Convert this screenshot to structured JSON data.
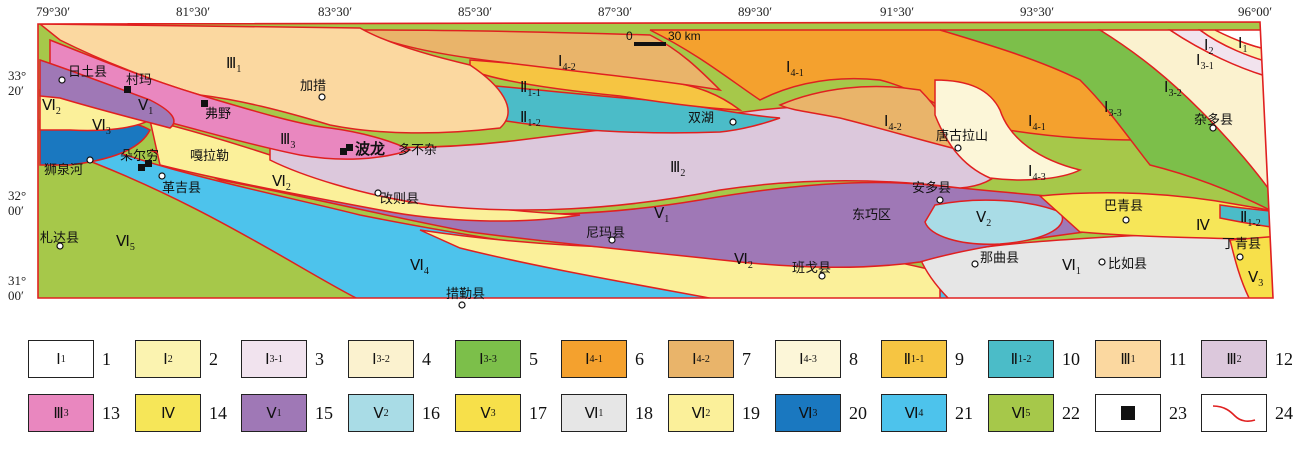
{
  "coords": {
    "top": [
      "79°30′",
      "81°30′",
      "83°30′",
      "85°30′",
      "87°30′",
      "89°30′",
      "91°30′",
      "93°30′",
      "96°00′"
    ],
    "left": [
      {
        "deg": "33°",
        "min": "20′"
      },
      {
        "deg": "32°",
        "min": "00′"
      },
      {
        "deg": "31°",
        "min": "00′"
      }
    ]
  },
  "scale_bar": {
    "zero": "0",
    "dist": "30 km"
  },
  "places": {
    "ritu": "日土县",
    "cunma": "村玛",
    "fuye": "弗野",
    "jiacuo": "加措",
    "shuanghu": "双湖",
    "zaduo": "杂多县",
    "tanggula": "唐古拉山",
    "bolong": "波龙",
    "duobuza": "多不杂",
    "duoer": "朵尔穷",
    "galale": "嘎拉勒",
    "shiquanhe": "狮泉河",
    "geji": "革吉县",
    "gaize": "改则县",
    "anduo": "安多县",
    "baqing": "巴青县",
    "dongqiao": "东巧区",
    "nima": "尼玛县",
    "zhada": "札达县",
    "dingqing": "丁青县",
    "naqu": "那曲县",
    "biru": "比如县",
    "bange": "班戈县",
    "cuoqin": "措勤县"
  },
  "map_units": {
    "I1": [
      "Ⅰ",
      "1"
    ],
    "I2": [
      "Ⅰ",
      "2"
    ],
    "I3_1": [
      "Ⅰ",
      "3-1"
    ],
    "I3_2": [
      "Ⅰ",
      "3-2"
    ],
    "I3_3": [
      "Ⅰ",
      "3-3"
    ],
    "I4_1a": [
      "Ⅰ",
      "4-1"
    ],
    "I4_1b": [
      "Ⅰ",
      "4-1"
    ],
    "I4_2a": [
      "Ⅰ",
      "4-2"
    ],
    "I4_2b": [
      "Ⅰ",
      "4-2"
    ],
    "I4_3": [
      "Ⅰ",
      "4-3"
    ],
    "II1_1": [
      "Ⅱ",
      "1-1"
    ],
    "II1_2a": [
      "Ⅱ",
      "1-2"
    ],
    "II1_2b": [
      "Ⅱ",
      "1-2"
    ],
    "III1": [
      "Ⅲ",
      "1"
    ],
    "III2": [
      "Ⅲ",
      "2"
    ],
    "III3": [
      "Ⅲ",
      "3"
    ],
    "IV": [
      "Ⅳ",
      ""
    ],
    "V1a": [
      "Ⅴ",
      "1"
    ],
    "V1b": [
      "Ⅴ",
      "1"
    ],
    "V2": [
      "Ⅴ",
      "2"
    ],
    "V3": [
      "Ⅴ",
      "3"
    ],
    "VI1": [
      "Ⅵ",
      "1"
    ],
    "VI2a": [
      "Ⅵ",
      "2"
    ],
    "VI2b": [
      "Ⅵ",
      "2"
    ],
    "VI2c": [
      "Ⅵ",
      "2"
    ],
    "VI3": [
      "Ⅵ",
      "3"
    ],
    "VI4": [
      "Ⅵ",
      "4"
    ],
    "VI5": [
      "Ⅵ",
      "5"
    ]
  },
  "colors": {
    "I1": "#ffffff",
    "I2": "#fbf3b0",
    "I3_1": "#f1e3ee",
    "I3_2": "#fbf2cf",
    "I3_3": "#7cbf4a",
    "I4_1": "#f4a12e",
    "I4_2": "#e9b46a",
    "I4_3": "#fcf6d8",
    "II1_1": "#f6c542",
    "II1_2": "#4bbcc8",
    "III1": "#fbd8a0",
    "III2": "#dcc8dc",
    "III3": "#e987bf",
    "IV": "#f6e658",
    "V1": "#9f78b6",
    "V2": "#a9dce6",
    "V3": "#f7e04a",
    "VI1": "#e6e6e6",
    "VI2": "#fbf09a",
    "VI3": "#1a78c0",
    "VI4": "#4dc3ec",
    "VI5": "#a6c84a",
    "boundary": "#e02020"
  },
  "legend": [
    {
      "num": "1",
      "sym": "Ⅰ",
      "sub": "1",
      "color": "#ffffff"
    },
    {
      "num": "2",
      "sym": "Ⅰ",
      "sub": "2",
      "color": "#fbf3b0"
    },
    {
      "num": "3",
      "sym": "Ⅰ",
      "sub": "3-1",
      "color": "#f1e3ee"
    },
    {
      "num": "4",
      "sym": "Ⅰ",
      "sub": "3-2",
      "color": "#fbf2cf"
    },
    {
      "num": "5",
      "sym": "Ⅰ",
      "sub": "3-3",
      "color": "#7cbf4a"
    },
    {
      "num": "6",
      "sym": "Ⅰ",
      "sub": "4-1",
      "color": "#f4a12e"
    },
    {
      "num": "7",
      "sym": "Ⅰ",
      "sub": "4-2",
      "color": "#e9b46a"
    },
    {
      "num": "8",
      "sym": "Ⅰ",
      "sub": "4-3",
      "color": "#fcf6d8"
    },
    {
      "num": "9",
      "sym": "Ⅱ",
      "sub": "1-1",
      "color": "#f6c542"
    },
    {
      "num": "10",
      "sym": "Ⅱ",
      "sub": "1-2",
      "color": "#4bbcc8"
    },
    {
      "num": "11",
      "sym": "Ⅲ",
      "sub": "1",
      "color": "#fbd8a0"
    },
    {
      "num": "12",
      "sym": "Ⅲ",
      "sub": "2",
      "color": "#dcc8dc"
    },
    {
      "num": "13",
      "sym": "Ⅲ",
      "sub": "3",
      "color": "#e987bf"
    },
    {
      "num": "14",
      "sym": "Ⅳ",
      "sub": "",
      "color": "#f6e658"
    },
    {
      "num": "15",
      "sym": "Ⅴ",
      "sub": "1",
      "color": "#9f78b6"
    },
    {
      "num": "16",
      "sym": "Ⅴ",
      "sub": "2",
      "color": "#a9dce6"
    },
    {
      "num": "17",
      "sym": "Ⅴ",
      "sub": "3",
      "color": "#f7e04a"
    },
    {
      "num": "18",
      "sym": "Ⅵ",
      "sub": "1",
      "color": "#e6e6e6"
    },
    {
      "num": "19",
      "sym": "Ⅵ",
      "sub": "2",
      "color": "#fbf09a"
    },
    {
      "num": "20",
      "sym": "Ⅵ",
      "sub": "3",
      "color": "#1a78c0"
    },
    {
      "num": "21",
      "sym": "Ⅵ",
      "sub": "4",
      "color": "#4dc3ec"
    },
    {
      "num": "22",
      "sym": "Ⅵ",
      "sub": "5",
      "color": "#a6c84a"
    },
    {
      "num": "23",
      "sym": "",
      "sub": "",
      "icon": "black-square"
    },
    {
      "num": "24",
      "sym": "",
      "sub": "",
      "icon": "red-boundary-line"
    }
  ]
}
